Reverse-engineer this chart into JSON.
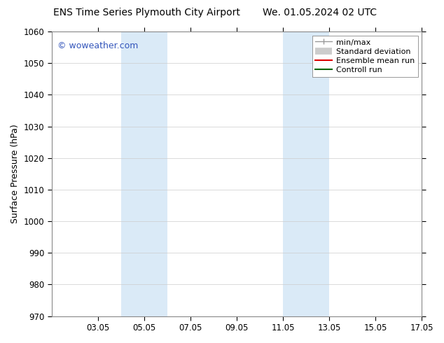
{
  "title_left": "ENS Time Series Plymouth City Airport",
  "title_right": "We. 01.05.2024 02 UTC",
  "ylabel": "Surface Pressure (hPa)",
  "ylim": [
    970,
    1060
  ],
  "yticks": [
    970,
    980,
    990,
    1000,
    1010,
    1020,
    1030,
    1040,
    1050,
    1060
  ],
  "xlim_start": 1.05,
  "xlim_end": 17.05,
  "xtick_labels": [
    "03.05",
    "05.05",
    "07.05",
    "09.05",
    "11.05",
    "13.05",
    "15.05",
    "17.05"
  ],
  "xtick_positions": [
    3.05,
    5.05,
    7.05,
    9.05,
    11.05,
    13.05,
    15.05,
    17.05
  ],
  "shaded_bands": [
    {
      "x_start": 4.05,
      "x_end": 6.05
    },
    {
      "x_start": 11.05,
      "x_end": 13.05
    }
  ],
  "shaded_color": "#daeaf7",
  "watermark": "© woweather.com",
  "watermark_color": "#3355bb",
  "background_color": "#ffffff",
  "grid_color": "#cccccc",
  "title_fontsize": 10,
  "tick_fontsize": 8.5,
  "ylabel_fontsize": 9,
  "legend_fontsize": 8
}
